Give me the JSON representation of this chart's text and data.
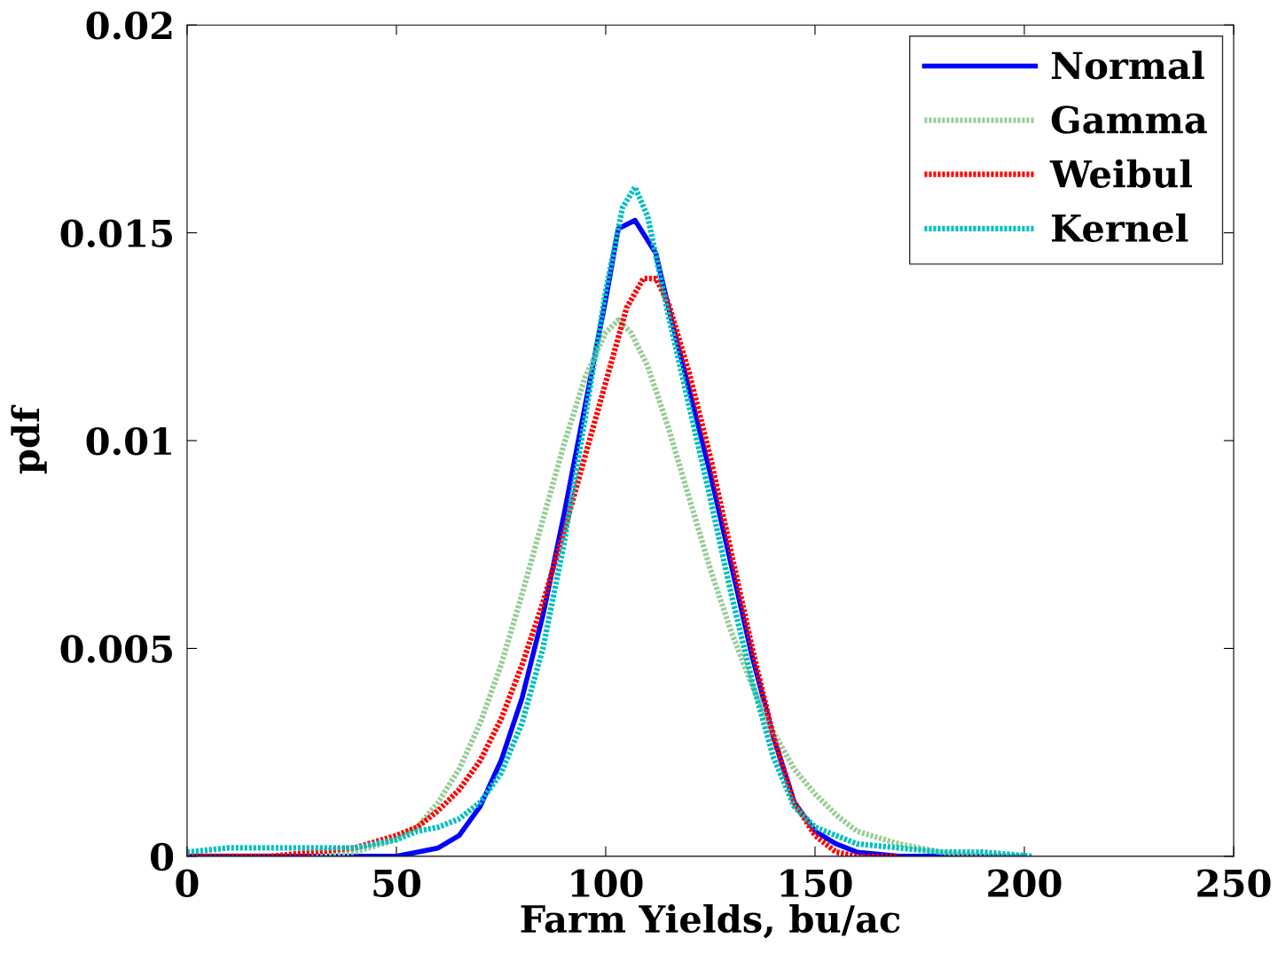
{
  "chart_data": {
    "type": "line",
    "xlabel": "Farm Yields, bu/ac",
    "ylabel": "pdf",
    "xlim": [
      0,
      250
    ],
    "ylim": [
      0,
      0.02
    ],
    "xticks": [
      0,
      50,
      100,
      150,
      200,
      250
    ],
    "yticks": [
      {
        "value": 0,
        "label": "0"
      },
      {
        "value": 0.005,
        "label": "0.005"
      },
      {
        "value": 0.01,
        "label": "0.01"
      },
      {
        "value": 0.015,
        "label": "0.015"
      },
      {
        "value": 0.02,
        "label": "0.02"
      }
    ],
    "legend": "top right",
    "grid": false,
    "marker": "none",
    "series": [
      {
        "name": "Normal",
        "color": "#0000ff",
        "line_style": "solid",
        "x": [
          0,
          20,
          40,
          50,
          55,
          60,
          65,
          70,
          75,
          80,
          85,
          90,
          95,
          100,
          103,
          107,
          112,
          115,
          120,
          125,
          130,
          135,
          140,
          145,
          150,
          155,
          160,
          170,
          200
        ],
        "values": [
          0,
          0,
          0,
          0,
          0.0001,
          0.0002,
          0.0005,
          0.0012,
          0.0023,
          0.0038,
          0.0058,
          0.0082,
          0.0108,
          0.0134,
          0.0151,
          0.0153,
          0.0145,
          0.0132,
          0.0112,
          0.0092,
          0.007,
          0.0048,
          0.0029,
          0.0013,
          0.0006,
          0.0003,
          0.0001,
          0,
          0
        ]
      },
      {
        "name": "Gamma",
        "color": "#99cc99",
        "line_style": "dotted",
        "x": [
          0,
          30,
          40,
          50,
          55,
          60,
          65,
          70,
          75,
          80,
          85,
          90,
          95,
          100,
          103,
          106,
          110,
          115,
          120,
          125,
          130,
          135,
          140,
          145,
          150,
          155,
          160,
          170,
          180,
          190,
          200
        ],
        "values": [
          0,
          0,
          0.0001,
          0.0004,
          0.0007,
          0.0013,
          0.0021,
          0.0032,
          0.0046,
          0.0063,
          0.0081,
          0.0099,
          0.0115,
          0.0126,
          0.0129,
          0.0126,
          0.0118,
          0.0103,
          0.0086,
          0.0069,
          0.0054,
          0.0041,
          0.003,
          0.0021,
          0.0015,
          0.001,
          0.0006,
          0.0003,
          0.0001,
          0,
          0
        ]
      },
      {
        "name": "Weibul",
        "color": "#ff0000",
        "line_style": "dotted",
        "x": [
          0,
          20,
          30,
          40,
          50,
          55,
          60,
          65,
          70,
          75,
          80,
          85,
          90,
          95,
          100,
          105,
          109,
          112,
          115,
          120,
          125,
          130,
          135,
          140,
          145,
          150,
          155,
          160,
          170
        ],
        "values": [
          0,
          0,
          0.0001,
          0.0002,
          0.0005,
          0.0007,
          0.0011,
          0.0016,
          0.0023,
          0.0033,
          0.0046,
          0.0061,
          0.0078,
          0.0096,
          0.0114,
          0.0132,
          0.0139,
          0.0139,
          0.0133,
          0.0116,
          0.0096,
          0.0073,
          0.005,
          0.0029,
          0.0013,
          0.0005,
          0.0001,
          0,
          0
        ]
      },
      {
        "name": "Kernel",
        "color": "#00bfbf",
        "line_style": "dotted",
        "x": [
          0,
          10,
          20,
          30,
          40,
          50,
          55,
          60,
          65,
          70,
          75,
          80,
          85,
          90,
          95,
          100,
          104,
          107,
          110,
          115,
          120,
          125,
          130,
          135,
          140,
          145,
          150,
          155,
          160,
          170,
          180,
          190,
          202
        ],
        "values": [
          0.0001,
          0.0002,
          0.0002,
          0.0002,
          0.0002,
          0.0004,
          0.0006,
          0.0007,
          0.0009,
          0.0013,
          0.002,
          0.0032,
          0.005,
          0.0075,
          0.0105,
          0.0136,
          0.0156,
          0.0161,
          0.0154,
          0.013,
          0.0108,
          0.0086,
          0.0063,
          0.0042,
          0.0024,
          0.0012,
          0.0007,
          0.0005,
          0.0003,
          0.0002,
          0.0001,
          0.0001,
          0
        ]
      }
    ]
  }
}
